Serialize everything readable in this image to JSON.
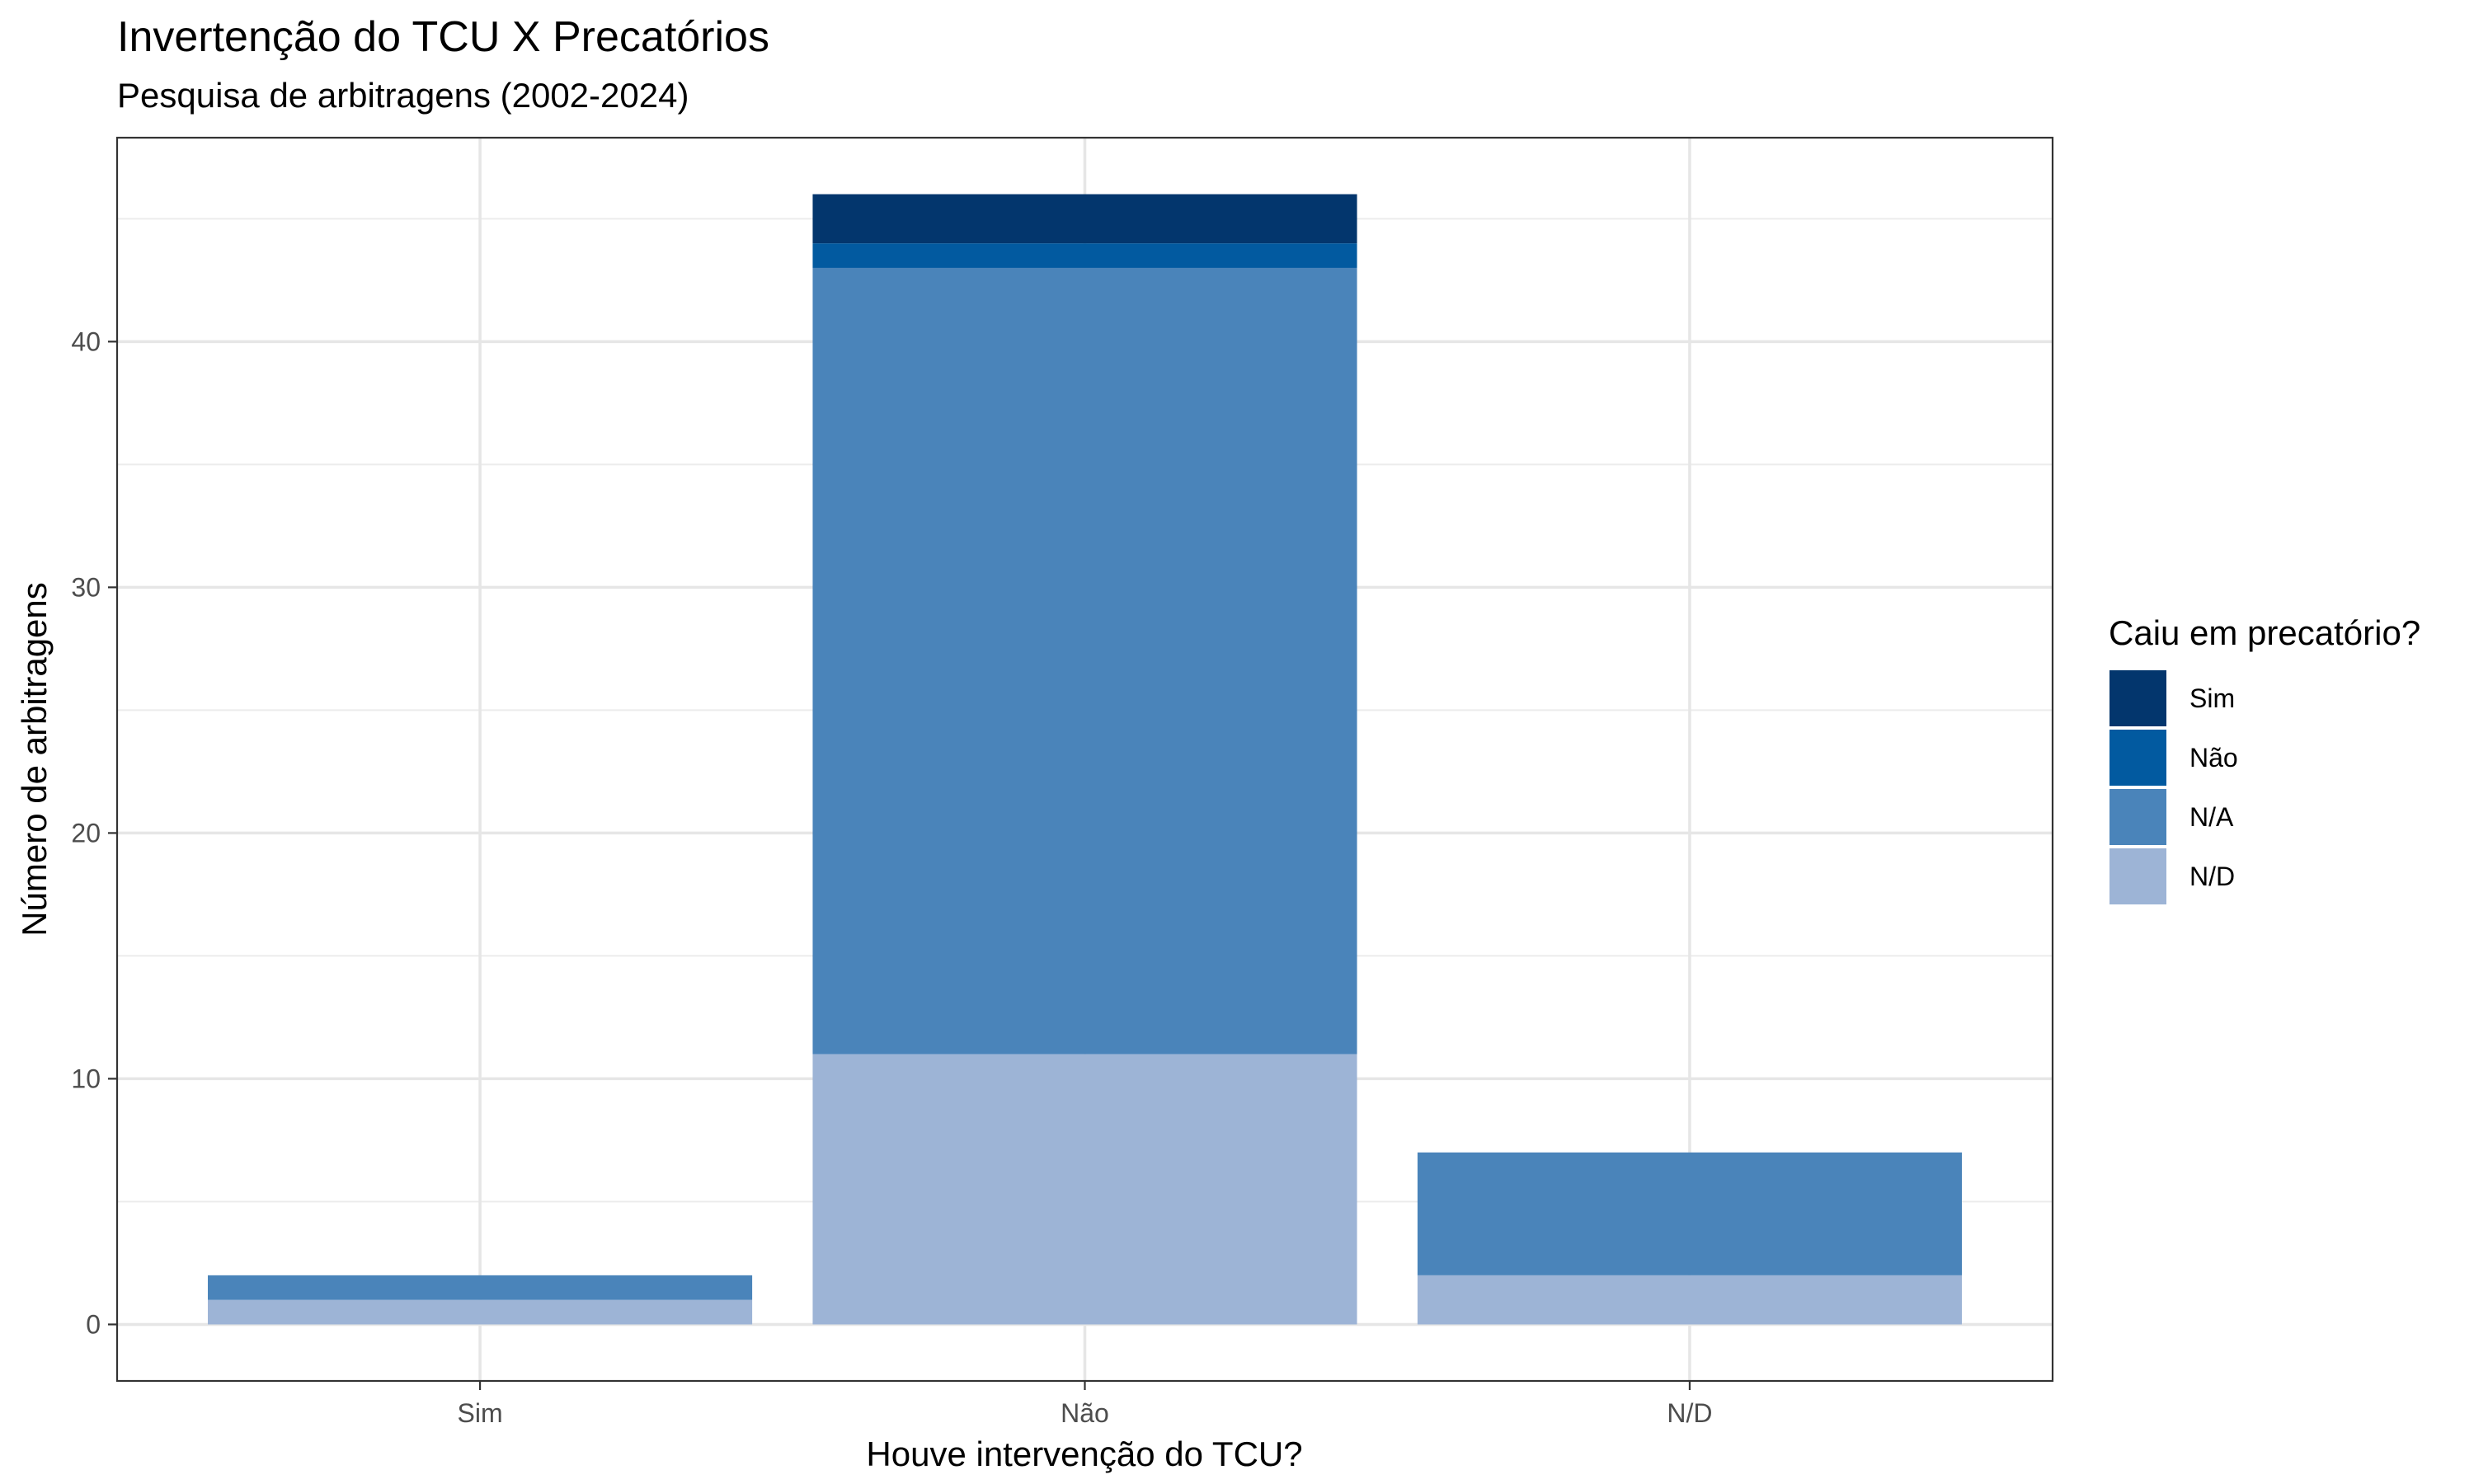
{
  "chart_data": {
    "type": "bar",
    "stacked": true,
    "title": "Invertenção do TCU X Precatórios",
    "subtitle": "Pesquisa de arbitragens (2002-2024)",
    "xlabel": "Houve intervenção do TCU?",
    "ylabel": "Número de arbitragens",
    "categories": [
      "Sim",
      "Não",
      "N/D"
    ],
    "ylim": [
      -2.3,
      48.3
    ],
    "yticks": [
      0,
      10,
      20,
      30,
      40
    ],
    "grid": true,
    "legend": {
      "title": "Caiu em precatório?",
      "placement": "right"
    },
    "series": [
      {
        "name": "N/D",
        "color": "#9db4d6",
        "values": [
          1,
          11,
          2
        ]
      },
      {
        "name": "N/A",
        "color": "#4a84ba",
        "values": [
          1,
          32,
          5
        ]
      },
      {
        "name": "Não",
        "color": "#025aa0",
        "values": [
          0,
          1,
          0
        ]
      },
      {
        "name": "Sim",
        "color": "#03366d",
        "values": [
          0,
          2,
          0
        ]
      }
    ],
    "legend_order": [
      "Sim",
      "Não",
      "N/A",
      "N/D"
    ]
  }
}
